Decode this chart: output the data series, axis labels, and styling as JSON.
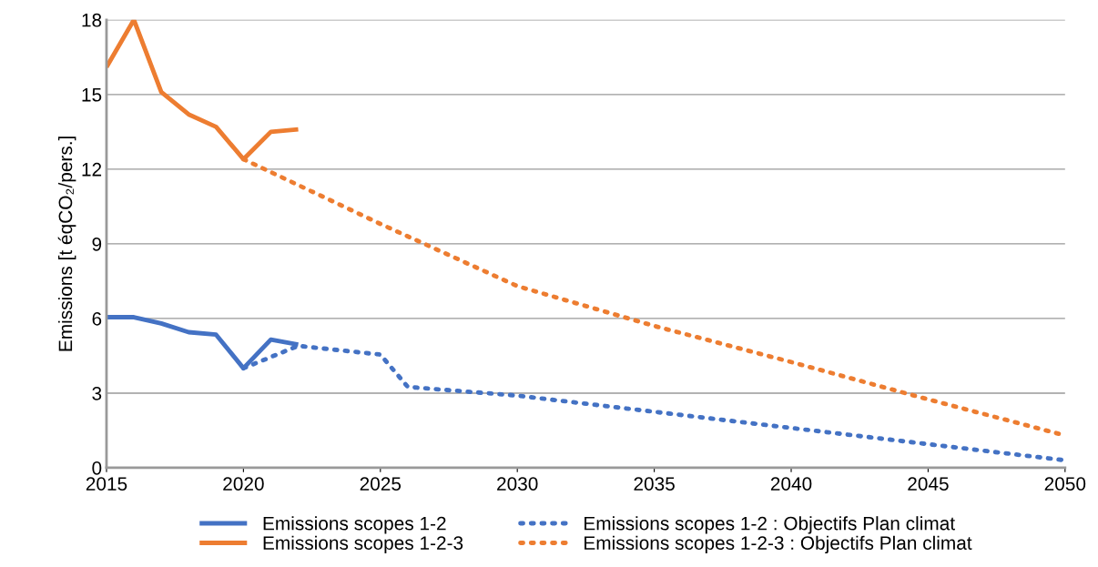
{
  "chart_data": {
    "type": "line",
    "ylabel": "Emissions [t éqCO₂/pers.]",
    "xlim": [
      2015,
      2050
    ],
    "xticks": [
      2015,
      2020,
      2025,
      2030,
      2035,
      2040,
      2045,
      2050
    ],
    "ylim": [
      0,
      18
    ],
    "yticks": [
      0,
      3,
      6,
      9,
      12,
      15,
      18
    ],
    "grid": "y",
    "legend": "bottom",
    "series": [
      {
        "name": "Emissions scopes 1-2",
        "color": "#4472c4",
        "line_style": "solid",
        "x": [
          2015,
          2016,
          2017,
          2018,
          2019,
          2020,
          2021,
          2022
        ],
        "values": [
          6.05,
          6.05,
          5.8,
          5.45,
          5.35,
          4.0,
          5.15,
          4.95
        ]
      },
      {
        "name": "Emissions scopes 1-2-3",
        "color": "#ed7d31",
        "line_style": "solid",
        "x": [
          2015,
          2016,
          2017,
          2018,
          2019,
          2020,
          2021,
          2022
        ],
        "values": [
          16.1,
          18.0,
          15.1,
          14.2,
          13.7,
          12.4,
          13.5,
          13.6
        ]
      },
      {
        "name": "Emissions scopes 1-2 : Objectifs Plan climat",
        "color": "#4472c4",
        "line_style": "dotted",
        "x": [
          2020,
          2022,
          2025,
          2026,
          2030,
          2040,
          2050
        ],
        "values": [
          4.0,
          4.9,
          4.55,
          3.25,
          2.9,
          1.6,
          0.3
        ]
      },
      {
        "name": "Emissions scopes 1-2-3 : Objectifs Plan climat",
        "color": "#ed7d31",
        "line_style": "dotted",
        "x": [
          2020,
          2025,
          2030,
          2035,
          2040,
          2045,
          2050
        ],
        "values": [
          12.4,
          9.8,
          7.3,
          5.7,
          4.25,
          2.75,
          1.3
        ]
      }
    ]
  }
}
